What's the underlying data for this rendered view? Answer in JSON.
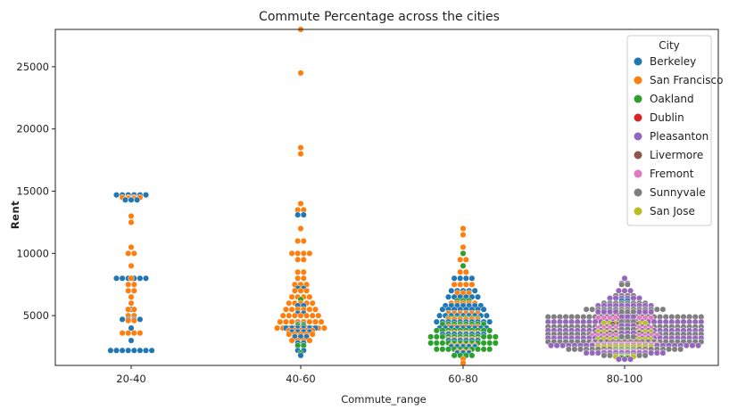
{
  "chart_data": {
    "type": "swarm",
    "title": "Commute Percentage across the cities",
    "xlabel": "Commute_range",
    "ylabel": "Rent",
    "categories": [
      "20-40",
      "40-60",
      "60-80",
      "80-100"
    ],
    "yticks": [
      5000,
      10000,
      15000,
      20000,
      25000
    ],
    "ylim": [
      1000,
      28000
    ],
    "grid": false,
    "legend": {
      "title": "City",
      "placement": "top-right",
      "entries": [
        {
          "name": "Berkeley",
          "color": "#1f77b4"
        },
        {
          "name": "San Francisco",
          "color": "#ff7f0e"
        },
        {
          "name": "Oakland",
          "color": "#2ca02c"
        },
        {
          "name": "Dublin",
          "color": "#d62728"
        },
        {
          "name": "Pleasanton",
          "color": "#9467bd"
        },
        {
          "name": "Livermore",
          "color": "#8c564b"
        },
        {
          "name": "Fremont",
          "color": "#e377c2"
        },
        {
          "name": "Sunnyvale",
          "color": "#7f7f7f"
        },
        {
          "name": "San Jose",
          "color": "#bcbd22"
        }
      ]
    },
    "series": [
      {
        "category": "20-40",
        "points": [
          [
            "Berkeley",
            14700,
            6
          ],
          [
            "San Francisco",
            14500,
            4
          ],
          [
            "San Francisco",
            14400,
            2
          ],
          [
            "Berkeley",
            14300,
            3
          ],
          [
            "Berkeley",
            14300,
            1
          ],
          [
            "San Francisco",
            13000,
            1
          ],
          [
            "San Francisco",
            12500,
            1
          ],
          [
            "San Francisco",
            10500,
            1
          ],
          [
            "San Francisco",
            10000,
            2
          ],
          [
            "San Francisco",
            9000,
            1
          ],
          [
            "Berkeley",
            8000,
            6
          ],
          [
            "San Francisco",
            8000,
            1
          ],
          [
            "San Francisco",
            7500,
            2
          ],
          [
            "San Francisco",
            7000,
            2
          ],
          [
            "San Francisco",
            6500,
            1
          ],
          [
            "San Francisco",
            6000,
            1
          ],
          [
            "Berkeley",
            5500,
            1
          ],
          [
            "San Francisco",
            5500,
            2
          ],
          [
            "San Francisco",
            5000,
            2
          ],
          [
            "Berkeley",
            4700,
            4
          ],
          [
            "San Francisco",
            4600,
            2
          ],
          [
            "Berkeley",
            4000,
            1
          ],
          [
            "San Francisco",
            3600,
            4
          ],
          [
            "Berkeley",
            3000,
            1
          ],
          [
            "Berkeley",
            2200,
            8
          ]
        ]
      },
      {
        "category": "40-60",
        "points": [
          [
            "San Francisco",
            28000,
            1
          ],
          [
            "San Francisco",
            24500,
            1
          ],
          [
            "San Francisco",
            18500,
            1
          ],
          [
            "San Francisco",
            18000,
            1
          ],
          [
            "San Francisco",
            14000,
            1
          ],
          [
            "San Francisco",
            13500,
            2
          ],
          [
            "Berkeley",
            13100,
            2
          ],
          [
            "San Francisco",
            12000,
            1
          ],
          [
            "San Francisco",
            11000,
            2
          ],
          [
            "San Francisco",
            10000,
            4
          ],
          [
            "San Francisco",
            9500,
            2
          ],
          [
            "San Francisco",
            8500,
            2
          ],
          [
            "San Francisco",
            8000,
            2
          ],
          [
            "San Francisco",
            7500,
            3
          ],
          [
            "Berkeley",
            7200,
            2
          ],
          [
            "San Francisco",
            7000,
            3
          ],
          [
            "San Francisco",
            6500,
            4
          ],
          [
            "Oakland",
            6300,
            1
          ],
          [
            "San Francisco",
            6000,
            5
          ],
          [
            "Berkeley",
            5800,
            2
          ],
          [
            "San Francisco",
            5500,
            6
          ],
          [
            "Berkeley",
            5200,
            2
          ],
          [
            "San Francisco",
            5000,
            7
          ],
          [
            "San Francisco",
            4500,
            8
          ],
          [
            "Berkeley",
            4300,
            2
          ],
          [
            "Oakland",
            4200,
            2
          ],
          [
            "San Francisco",
            4000,
            9
          ],
          [
            "Berkeley",
            4000,
            6
          ],
          [
            "San Francisco",
            3800,
            5
          ],
          [
            "Berkeley",
            3700,
            4
          ],
          [
            "San Francisco",
            3500,
            5
          ],
          [
            "Berkeley",
            3300,
            3
          ],
          [
            "San Francisco",
            3000,
            4
          ],
          [
            "Berkeley",
            2800,
            2
          ],
          [
            "Oakland",
            2600,
            2
          ],
          [
            "Berkeley",
            2200,
            2
          ],
          [
            "Oakland",
            2000,
            1
          ],
          [
            "Berkeley",
            1800,
            1
          ]
        ]
      },
      {
        "category": "60-80",
        "points": [
          [
            "San Francisco",
            12000,
            1
          ],
          [
            "San Francisco",
            11500,
            1
          ],
          [
            "San Francisco",
            10500,
            1
          ],
          [
            "Oakland",
            10000,
            1
          ],
          [
            "San Francisco",
            9500,
            2
          ],
          [
            "Oakland",
            9000,
            1
          ],
          [
            "San Francisco",
            8500,
            2
          ],
          [
            "Berkeley",
            8000,
            4
          ],
          [
            "San Francisco",
            7500,
            4
          ],
          [
            "Berkeley",
            7000,
            5
          ],
          [
            "San Francisco",
            6800,
            3
          ],
          [
            "Berkeley",
            6500,
            6
          ],
          [
            "Oakland",
            6200,
            3
          ],
          [
            "San Francisco",
            6000,
            5
          ],
          [
            "Berkeley",
            5800,
            7
          ],
          [
            "Berkeley",
            5500,
            8
          ],
          [
            "San Francisco",
            5200,
            6
          ],
          [
            "Berkeley",
            5000,
            9
          ],
          [
            "Oakland",
            4800,
            6
          ],
          [
            "San Francisco",
            4700,
            6
          ],
          [
            "Berkeley",
            4500,
            10
          ],
          [
            "Oakland",
            4300,
            8
          ],
          [
            "San Francisco",
            4100,
            6
          ],
          [
            "Berkeley",
            4000,
            9
          ],
          [
            "Oakland",
            3800,
            10
          ],
          [
            "San Francisco",
            3600,
            6
          ],
          [
            "Berkeley",
            3500,
            8
          ],
          [
            "Oakland",
            3300,
            12
          ],
          [
            "San Francisco",
            3100,
            6
          ],
          [
            "Berkeley",
            3000,
            6
          ],
          [
            "Oakland",
            2800,
            12
          ],
          [
            "San Francisco",
            2600,
            5
          ],
          [
            "Berkeley",
            2500,
            5
          ],
          [
            "Oakland",
            2300,
            10
          ],
          [
            "San Francisco",
            2100,
            3
          ],
          [
            "Berkeley",
            2000,
            3
          ],
          [
            "Oakland",
            1800,
            4
          ],
          [
            "San Francisco",
            1500,
            1
          ],
          [
            "San Francisco",
            1200,
            1
          ]
        ]
      },
      {
        "category": "80-100",
        "points": [
          [
            "Pleasanton",
            8000,
            1
          ],
          [
            "Pleasanton",
            7600,
            2
          ],
          [
            "Sunnyvale",
            7500,
            2
          ],
          [
            "Pleasanton",
            7000,
            3
          ],
          [
            "Sunnyvale",
            6600,
            4
          ],
          [
            "Pleasanton",
            6400,
            6
          ],
          [
            "Berkeley",
            6200,
            2
          ],
          [
            "Sunnyvale",
            6000,
            8
          ],
          [
            "Pleasanton",
            5800,
            10
          ],
          [
            "Sunnyvale",
            5500,
            14
          ],
          [
            "Pleasanton",
            5300,
            10
          ],
          [
            "Dublin",
            5000,
            3
          ],
          [
            "Sunnyvale",
            4900,
            30
          ],
          [
            "Fremont",
            4800,
            10
          ],
          [
            "Dublin",
            4600,
            3
          ],
          [
            "Pleasanton",
            4500,
            30
          ],
          [
            "San Jose",
            4400,
            8
          ],
          [
            "Livermore",
            4300,
            5
          ],
          [
            "Sunnyvale",
            4100,
            30
          ],
          [
            "Fremont",
            4000,
            10
          ],
          [
            "Oakland",
            4000,
            2
          ],
          [
            "Pleasanton",
            3800,
            30
          ],
          [
            "San Jose",
            3700,
            10
          ],
          [
            "Livermore",
            3600,
            6
          ],
          [
            "Sunnyvale",
            3500,
            30
          ],
          [
            "Fremont",
            3400,
            12
          ],
          [
            "Pleasanton",
            3200,
            30
          ],
          [
            "San Jose",
            3100,
            10
          ],
          [
            "Oakland",
            3000,
            3
          ],
          [
            "Sunnyvale",
            2900,
            30
          ],
          [
            "Livermore",
            2800,
            6
          ],
          [
            "Fremont",
            2700,
            12
          ],
          [
            "Pleasanton",
            2600,
            26
          ],
          [
            "San Jose",
            2500,
            10
          ],
          [
            "Sunnyvale",
            2300,
            20
          ],
          [
            "Oakland",
            2200,
            4
          ],
          [
            "Fremont",
            2100,
            8
          ],
          [
            "Pleasanton",
            2000,
            14
          ],
          [
            "Sunnyvale",
            1800,
            8
          ],
          [
            "San Jose",
            1700,
            4
          ],
          [
            "Oakland",
            1600,
            2
          ],
          [
            "Pleasanton",
            1500,
            3
          ]
        ]
      }
    ]
  }
}
